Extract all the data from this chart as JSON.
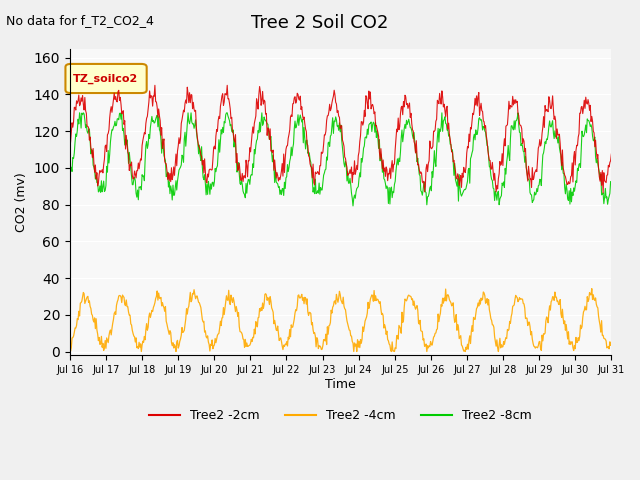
{
  "title": "Tree 2 Soil CO2",
  "subtitle": "No data for f_T2_CO2_4",
  "ylabel": "CO2 (mv)",
  "xlabel": "Time",
  "legend_label": "TZ_soilco2",
  "yticks": [
    0,
    20,
    40,
    60,
    80,
    100,
    120,
    140,
    160
  ],
  "xtick_labels": [
    "Jul 16",
    "Jul 17",
    "Jul 18",
    "Jul 19",
    "Jul 20",
    "Jul 21",
    "Jul 22",
    "Jul 23",
    "Jul 24",
    "Jul 25",
    "Jul 26",
    "Jul 27",
    "Jul 28",
    "Jul 29",
    "Jul 30",
    "Jul 31"
  ],
  "n_days": 15,
  "color_2cm": "#dd0000",
  "color_4cm": "#ffaa00",
  "color_8cm": "#00cc00",
  "series_labels": [
    "Tree2 -2cm",
    "Tree2 -4cm",
    "Tree2 -8cm"
  ],
  "ylim": [
    -2,
    165
  ],
  "fig_width": 6.4,
  "fig_height": 4.8,
  "dpi": 100
}
